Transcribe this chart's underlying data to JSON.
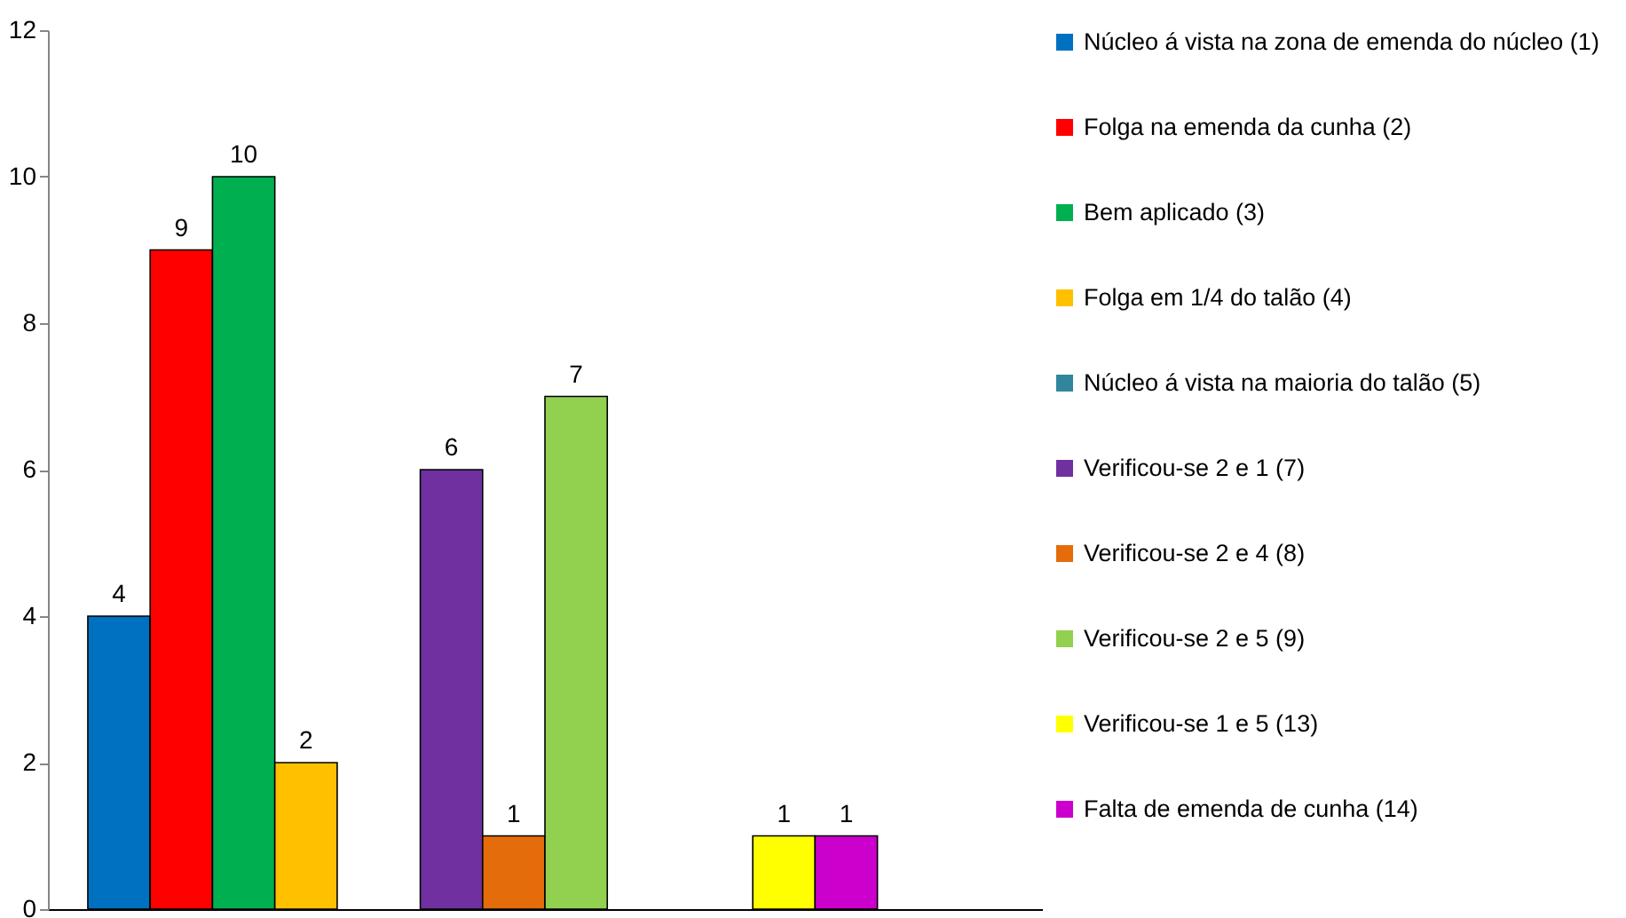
{
  "chart_data": {
    "type": "bar",
    "categories": [
      null,
      null,
      null
    ],
    "series": [
      {
        "name": "Núcleo á vista na zona de emenda do núcleo (1)",
        "color": "#0070c0",
        "values": [
          4,
          null,
          null
        ]
      },
      {
        "name": "Folga na emenda da cunha (2)",
        "color": "#ff0000",
        "values": [
          9,
          null,
          null
        ]
      },
      {
        "name": "Bem aplicado (3)",
        "color": "#00b050",
        "values": [
          10,
          null,
          null
        ]
      },
      {
        "name": "Folga em 1/4 do talão (4)",
        "color": "#ffc000",
        "values": [
          2,
          null,
          null
        ]
      },
      {
        "name": "Núcleo á vista na maioria do talão (5)",
        "color": "#31859c",
        "values": [
          null,
          null,
          null
        ]
      },
      {
        "name": "Verificou-se 2 e 1 (7)",
        "color": "#7030a0",
        "values": [
          null,
          6,
          null
        ]
      },
      {
        "name": "Verificou-se 2 e 4 (8)",
        "color": "#e46c0a",
        "values": [
          null,
          1,
          null
        ]
      },
      {
        "name": "Verificou-se 2 e 5 (9)",
        "color": "#92d050",
        "values": [
          null,
          7,
          null
        ]
      },
      {
        "name": "Verificou-se 1 e 5 (13)",
        "color": "#ffff00",
        "values": [
          null,
          null,
          1
        ]
      },
      {
        "name": "Falta de emenda de cunha (14)",
        "color": "#cc00cc",
        "values": [
          null,
          null,
          1
        ]
      }
    ],
    "ylim": [
      0,
      12
    ],
    "yticks": [
      0,
      2,
      4,
      6,
      8,
      10,
      12
    ],
    "data_labels": true,
    "legend": "right",
    "tick_labels": "y"
  }
}
